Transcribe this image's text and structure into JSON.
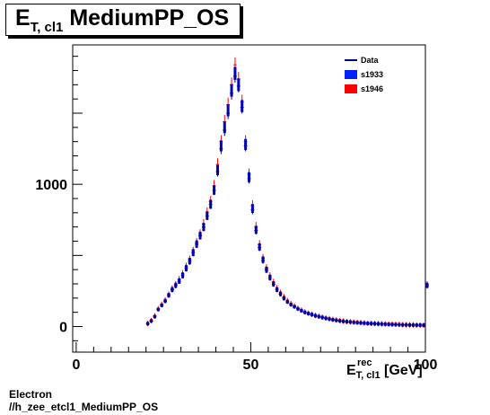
{
  "title": {
    "main": "E",
    "sub": "T, cl1",
    "rest": "MediumPP_OS"
  },
  "footer": {
    "line1": "Electron",
    "line2": "//h_zee_etcl1_MediumPP_OS"
  },
  "chart_data": {
    "type": "scatter",
    "title": "E_T, cl1 MediumPP_OS",
    "xlabel": {
      "main": "E",
      "sup": "rec",
      "sub": "T, cl1",
      "unit": "[GeV]"
    },
    "ylabel": "",
    "xlim": [
      -1,
      100
    ],
    "ylim": [
      -180,
      1980
    ],
    "x_ticks": [
      0,
      50,
      100
    ],
    "y_ticks": [
      0,
      1000
    ],
    "legend_placement": "top-right",
    "legend": [
      {
        "name": "Data",
        "style": "line",
        "color": "#00008b"
      },
      {
        "name": "s1933",
        "style": "box",
        "color": "#0022ff"
      },
      {
        "name": "s1946",
        "style": "box",
        "color": "#ff0000"
      }
    ],
    "x": [
      20,
      21,
      22,
      23,
      24,
      25,
      26,
      27,
      28,
      29,
      30,
      31,
      32,
      33,
      34,
      35,
      36,
      37,
      38,
      39,
      40,
      41,
      42,
      43,
      44,
      45,
      46,
      47,
      48,
      49,
      50,
      51,
      52,
      53,
      54,
      55,
      56,
      57,
      58,
      59,
      60,
      61,
      62,
      63,
      64,
      65,
      66,
      67,
      68,
      69,
      70,
      71,
      72,
      73,
      74,
      75,
      76,
      77,
      78,
      79,
      80,
      81,
      82,
      83,
      84,
      85,
      86,
      87,
      88,
      89,
      90,
      91,
      92,
      93,
      94,
      95,
      96,
      97,
      98,
      99,
      100
    ],
    "series": [
      {
        "name": "s1933",
        "color": "#0000cc",
        "values": [
          20,
          40,
          70,
          120,
          150,
          180,
          220,
          260,
          290,
          320,
          360,
          410,
          460,
          520,
          580,
          640,
          700,
          780,
          860,
          960,
          1100,
          1270,
          1400,
          1520,
          1660,
          1780,
          1700,
          1550,
          1280,
          1050,
          830,
          680,
          560,
          470,
          400,
          345,
          300,
          260,
          230,
          200,
          175,
          155,
          140,
          125,
          112,
          100,
          92,
          84,
          76,
          70,
          64,
          58,
          53,
          48,
          44,
          40,
          37,
          34,
          32,
          30,
          28,
          26,
          24,
          22,
          21,
          20,
          19,
          18,
          17,
          16,
          15,
          14,
          13,
          12,
          12,
          11,
          11,
          10,
          10,
          9,
          290
        ]
      },
      {
        "name": "s1946",
        "color": "#ff0000",
        "values": [
          22,
          42,
          75,
          125,
          155,
          185,
          225,
          265,
          295,
          330,
          370,
          420,
          470,
          530,
          590,
          650,
          720,
          800,
          880,
          990,
          1140,
          1300,
          1440,
          1560,
          1700,
          1840,
          1740,
          1580,
          1300,
          1070,
          850,
          700,
          575,
          480,
          410,
          355,
          310,
          268,
          236,
          206,
          180,
          160,
          144,
          128,
          115,
          103,
          94,
          86,
          78,
          72,
          66,
          60,
          55,
          50,
          46,
          42,
          38,
          35,
          33,
          31,
          29,
          27,
          25,
          23,
          22,
          21,
          20,
          19,
          18,
          17,
          16,
          15,
          14,
          13,
          12,
          12,
          11,
          11,
          10,
          10,
          295
        ]
      },
      {
        "name": "Data",
        "color": "#00008b",
        "values": [
          20,
          38,
          68,
          118,
          148,
          178,
          218,
          258,
          288,
          318,
          358,
          408,
          458,
          518,
          578,
          638,
          698,
          778,
          858,
          958,
          1090,
          1250,
          1380,
          1500,
          1640,
          1760,
          1690,
          1540,
          1270,
          1040,
          820,
          675,
          555,
          465,
          398,
          342,
          298,
          258,
          228,
          198,
          173,
          153,
          138,
          123,
          110,
          99,
          91,
          83,
          75,
          69,
          63,
          57,
          52,
          47,
          43,
          39,
          36,
          33,
          31,
          29,
          27,
          25,
          23,
          21,
          20,
          19,
          18,
          17,
          16,
          15,
          14,
          13,
          12,
          11,
          11,
          10,
          10,
          9,
          9,
          8,
          285
        ]
      }
    ]
  }
}
